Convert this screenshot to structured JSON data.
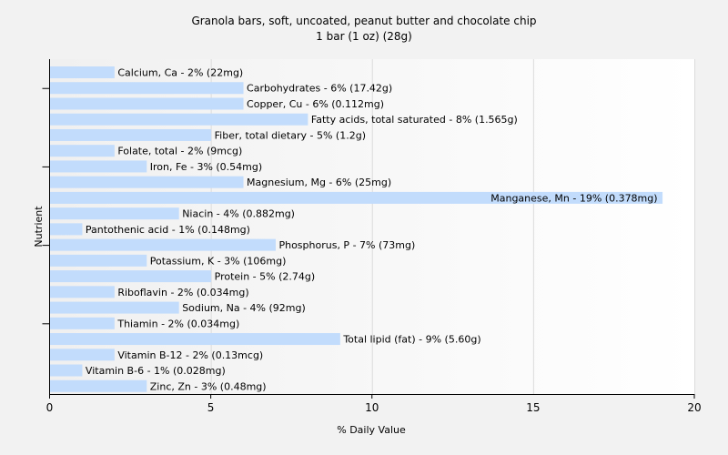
{
  "chart_data": {
    "type": "bar",
    "orientation": "horizontal",
    "title": "Granola bars, soft, uncoated, peanut butter and chocolate chip",
    "subtitle": "1 bar (1 oz) (28g)",
    "xlabel": "% Daily Value",
    "ylabel": "Nutrient",
    "xlim": [
      0,
      20
    ],
    "xticks": [
      0,
      5,
      10,
      20
    ],
    "xtick_labels": [
      "0",
      "5",
      "10",
      "20"
    ],
    "extra_gridlines": [
      15
    ],
    "extra_tick_labels": [
      "15"
    ],
    "grid": true,
    "bar_color": "#c2dcfc",
    "categories": [
      "Calcium, Ca",
      "Carbohydrates",
      "Copper, Cu",
      "Fatty acids, total saturated",
      "Fiber, total dietary",
      "Folate, total",
      "Iron, Fe",
      "Magnesium, Mg",
      "Manganese, Mn",
      "Niacin",
      "Pantothenic acid",
      "Phosphorus, P",
      "Potassium, K",
      "Protein",
      "Riboflavin",
      "Sodium, Na",
      "Thiamin",
      "Total lipid (fat)",
      "Vitamin B-12",
      "Vitamin B-6",
      "Zinc, Zn"
    ],
    "values": [
      2,
      6,
      6,
      8,
      5,
      2,
      3,
      6,
      19,
      4,
      1,
      7,
      3,
      5,
      2,
      4,
      2,
      9,
      2,
      1,
      3
    ],
    "labels": [
      "Calcium, Ca - 2% (22mg)",
      "Carbohydrates - 6% (17.42g)",
      "Copper, Cu - 6% (0.112mg)",
      "Fatty acids, total saturated - 8% (1.565g)",
      "Fiber, total dietary - 5% (1.2g)",
      "Folate, total - 2% (9mcg)",
      "Iron, Fe - 3% (0.54mg)",
      "Magnesium, Mg - 6% (25mg)",
      "Manganese, Mn - 19% (0.378mg)",
      "Niacin - 4% (0.882mg)",
      "Pantothenic acid - 1% (0.148mg)",
      "Phosphorus, P - 7% (73mg)",
      "Potassium, K - 3% (106mg)",
      "Protein - 5% (2.74g)",
      "Riboflavin - 2% (0.034mg)",
      "Sodium, Na - 4% (92mg)",
      "Thiamin - 2% (0.034mg)",
      "Total lipid (fat) - 9% (5.60g)",
      "Vitamin B-12 - 2% (0.13mcg)",
      "Vitamin B-6 - 1% (0.028mg)",
      "Zinc, Zn - 3% (0.48mg)"
    ]
  }
}
